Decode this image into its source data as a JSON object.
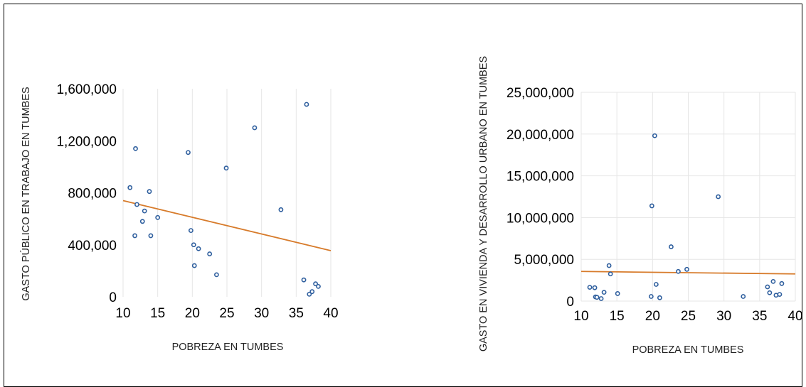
{
  "chart_data": [
    {
      "type": "scatter",
      "title": "",
      "xlabel": "POBREZA EN TUMBES",
      "ylabel": "GASTO PÚBLICO EN TRABAJO EN TUMBES",
      "xlim": [
        10,
        40
      ],
      "ylim": [
        0,
        1600000
      ],
      "x_ticks": [
        "10",
        "15",
        "20",
        "25",
        "30",
        "35",
        "40"
      ],
      "y_ticks": [
        "0",
        "400,000",
        "800,000",
        "1,200,000",
        "1,600,000"
      ],
      "grid": "vertical",
      "points": [
        {
          "x": 11.0,
          "y": 840000
        },
        {
          "x": 11.7,
          "y": 470000
        },
        {
          "x": 11.8,
          "y": 1140000
        },
        {
          "x": 12.0,
          "y": 710000
        },
        {
          "x": 12.8,
          "y": 580000
        },
        {
          "x": 13.1,
          "y": 660000
        },
        {
          "x": 13.8,
          "y": 810000
        },
        {
          "x": 14.0,
          "y": 470000
        },
        {
          "x": 15.0,
          "y": 610000
        },
        {
          "x": 19.4,
          "y": 1110000
        },
        {
          "x": 19.8,
          "y": 510000
        },
        {
          "x": 20.2,
          "y": 400000
        },
        {
          "x": 20.3,
          "y": 240000
        },
        {
          "x": 20.9,
          "y": 370000
        },
        {
          "x": 22.5,
          "y": 330000
        },
        {
          "x": 23.5,
          "y": 170000
        },
        {
          "x": 24.9,
          "y": 990000
        },
        {
          "x": 29.0,
          "y": 1300000
        },
        {
          "x": 32.8,
          "y": 670000
        },
        {
          "x": 36.1,
          "y": 130000
        },
        {
          "x": 36.5,
          "y": 1480000
        },
        {
          "x": 36.9,
          "y": 20000
        },
        {
          "x": 37.3,
          "y": 40000
        },
        {
          "x": 37.8,
          "y": 100000
        },
        {
          "x": 38.2,
          "y": 80000
        }
      ],
      "trendline": {
        "x": [
          10,
          40
        ],
        "y": [
          740000,
          355000
        ]
      }
    },
    {
      "type": "scatter",
      "title": "",
      "xlabel": "POBREZA EN TUMBES",
      "ylabel": "GASTO EN VIVIENDA Y DESARROLLO URBANO EN TUMBES",
      "xlim": [
        10,
        40
      ],
      "ylim": [
        0,
        25000000
      ],
      "x_ticks": [
        "10",
        "15",
        "20",
        "25",
        "30",
        "35",
        "40"
      ],
      "y_ticks": [
        "0",
        "5,000,000",
        "10,000,000",
        "15,000,000",
        "20,000,000",
        "25,000,000"
      ],
      "grid": "both",
      "points": [
        {
          "x": 11.2,
          "y": 1650000
        },
        {
          "x": 11.9,
          "y": 1600000
        },
        {
          "x": 12.0,
          "y": 500000
        },
        {
          "x": 12.2,
          "y": 450000
        },
        {
          "x": 12.8,
          "y": 300000
        },
        {
          "x": 13.2,
          "y": 1050000
        },
        {
          "x": 13.9,
          "y": 4250000
        },
        {
          "x": 14.1,
          "y": 3250000
        },
        {
          "x": 15.1,
          "y": 900000
        },
        {
          "x": 19.8,
          "y": 550000
        },
        {
          "x": 19.9,
          "y": 11400000
        },
        {
          "x": 20.3,
          "y": 19800000
        },
        {
          "x": 20.5,
          "y": 2000000
        },
        {
          "x": 21.0,
          "y": 400000
        },
        {
          "x": 22.6,
          "y": 6500000
        },
        {
          "x": 23.6,
          "y": 3550000
        },
        {
          "x": 24.8,
          "y": 3800000
        },
        {
          "x": 29.2,
          "y": 12500000
        },
        {
          "x": 32.7,
          "y": 550000
        },
        {
          "x": 36.1,
          "y": 1700000
        },
        {
          "x": 36.4,
          "y": 1000000
        },
        {
          "x": 36.9,
          "y": 2350000
        },
        {
          "x": 37.3,
          "y": 700000
        },
        {
          "x": 37.8,
          "y": 800000
        },
        {
          "x": 38.1,
          "y": 2100000
        }
      ],
      "trendline": {
        "x": [
          10,
          40
        ],
        "y": [
          3550000,
          3250000
        ]
      }
    }
  ]
}
